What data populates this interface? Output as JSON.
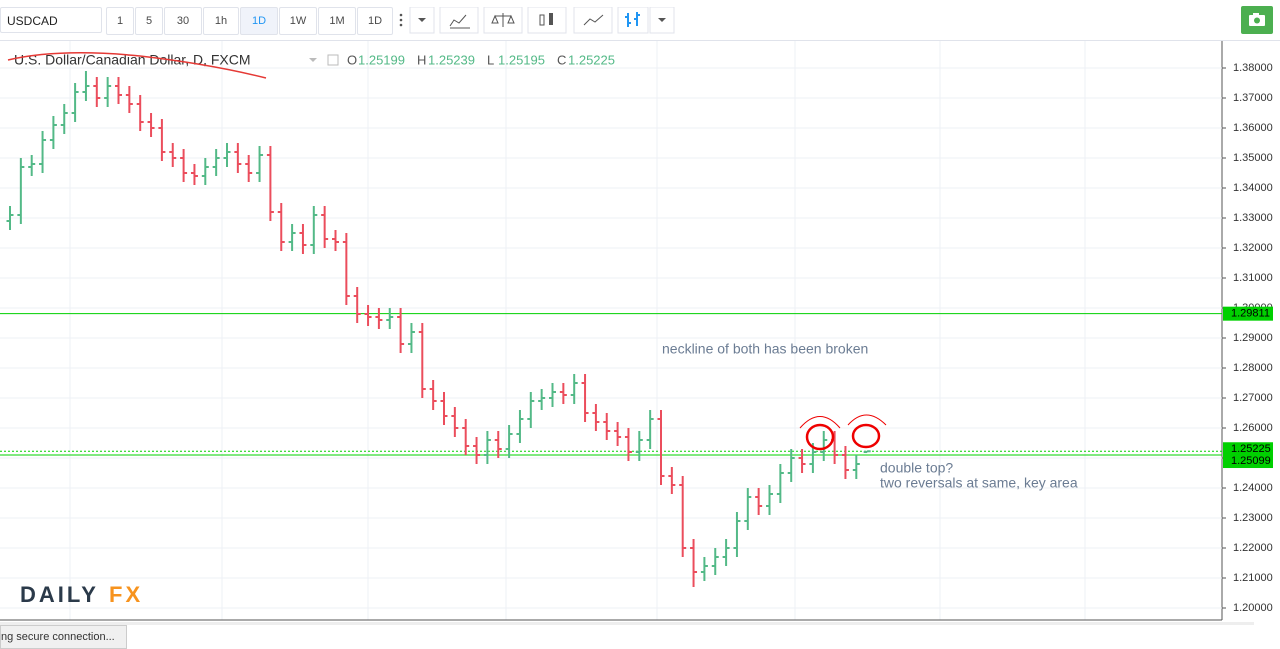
{
  "toolbar": {
    "symbol": "USDCAD",
    "intervals": [
      "1",
      "5",
      "30",
      "1h",
      "1D",
      "1W",
      "1M",
      "1D"
    ]
  },
  "chart_data": {
    "type": "ohlc",
    "title": "U.S. Dollar/Canadian Dollar, D, FXCM",
    "ohlc_letters": [
      "O",
      "H",
      "L",
      "C"
    ],
    "open": [
      1.329,
      1.331,
      1.347,
      1.348,
      1.356,
      1.361,
      1.365,
      1.372,
      1.374,
      1.37,
      1.374,
      1.371,
      1.368,
      1.362,
      1.36,
      1.352,
      1.35,
      1.345,
      1.344,
      1.347,
      1.35,
      1.352,
      1.348,
      1.345,
      1.351,
      1.332,
      1.322,
      1.325,
      1.321,
      1.331,
      1.323,
      1.322,
      1.304,
      1.298,
      1.297,
      1.296,
      1.297,
      1.288,
      1.292,
      1.273,
      1.269,
      1.264,
      1.26,
      1.254,
      1.251,
      1.256,
      1.253,
      1.258,
      1.263,
      1.269,
      1.27,
      1.272,
      1.271,
      1.275,
      1.265,
      1.262,
      1.259,
      1.257,
      1.252,
      1.256,
      1.263,
      1.244,
      1.241,
      1.22,
      1.212,
      1.214,
      1.217,
      1.22,
      1.229,
      1.237,
      1.234,
      1.238,
      1.245,
      1.25,
      1.248,
      1.252,
      1.256,
      1.251,
      1.246,
      1.25199
    ],
    "high": [
      1.334,
      1.35,
      1.351,
      1.359,
      1.364,
      1.368,
      1.375,
      1.379,
      1.377,
      1.377,
      1.377,
      1.374,
      1.371,
      1.365,
      1.363,
      1.355,
      1.353,
      1.348,
      1.35,
      1.353,
      1.355,
      1.355,
      1.351,
      1.354,
      1.354,
      1.335,
      1.328,
      1.328,
      1.334,
      1.334,
      1.326,
      1.325,
      1.307,
      1.301,
      1.3,
      1.3,
      1.3,
      1.295,
      1.295,
      1.276,
      1.272,
      1.267,
      1.263,
      1.257,
      1.259,
      1.259,
      1.261,
      1.266,
      1.272,
      1.273,
      1.275,
      1.275,
      1.278,
      1.278,
      1.268,
      1.265,
      1.262,
      1.26,
      1.259,
      1.266,
      1.266,
      1.247,
      1.244,
      1.223,
      1.217,
      1.22,
      1.223,
      1.232,
      1.24,
      1.24,
      1.241,
      1.248,
      1.253,
      1.253,
      1.255,
      1.259,
      1.259,
      1.254,
      1.251,
      1.25239
    ],
    "low": [
      1.326,
      1.328,
      1.344,
      1.345,
      1.353,
      1.358,
      1.362,
      1.369,
      1.367,
      1.367,
      1.368,
      1.365,
      1.359,
      1.357,
      1.349,
      1.347,
      1.342,
      1.341,
      1.341,
      1.344,
      1.347,
      1.345,
      1.342,
      1.342,
      1.329,
      1.319,
      1.319,
      1.318,
      1.318,
      1.32,
      1.319,
      1.301,
      1.295,
      1.294,
      1.293,
      1.293,
      1.285,
      1.285,
      1.27,
      1.266,
      1.261,
      1.257,
      1.251,
      1.248,
      1.248,
      1.25,
      1.25,
      1.255,
      1.26,
      1.266,
      1.267,
      1.268,
      1.268,
      1.262,
      1.259,
      1.256,
      1.254,
      1.249,
      1.249,
      1.253,
      1.241,
      1.238,
      1.217,
      1.207,
      1.209,
      1.211,
      1.214,
      1.217,
      1.226,
      1.231,
      1.231,
      1.235,
      1.242,
      1.245,
      1.245,
      1.249,
      1.248,
      1.243,
      1.243,
      1.25195
    ],
    "close": [
      1.331,
      1.347,
      1.348,
      1.356,
      1.361,
      1.365,
      1.372,
      1.374,
      1.37,
      1.374,
      1.371,
      1.368,
      1.362,
      1.36,
      1.352,
      1.35,
      1.345,
      1.344,
      1.347,
      1.35,
      1.352,
      1.348,
      1.345,
      1.351,
      1.332,
      1.322,
      1.325,
      1.321,
      1.331,
      1.323,
      1.322,
      1.304,
      1.298,
      1.297,
      1.296,
      1.297,
      1.288,
      1.292,
      1.273,
      1.269,
      1.264,
      1.26,
      1.254,
      1.251,
      1.256,
      1.253,
      1.258,
      1.263,
      1.269,
      1.27,
      1.272,
      1.271,
      1.275,
      1.265,
      1.262,
      1.259,
      1.257,
      1.252,
      1.256,
      1.263,
      1.244,
      1.241,
      1.22,
      1.212,
      1.214,
      1.217,
      1.22,
      1.229,
      1.237,
      1.234,
      1.238,
      1.245,
      1.25,
      1.248,
      1.252,
      1.256,
      1.251,
      1.246,
      1.248,
      1.25225
    ],
    "up_color": "#53b987",
    "down_color": "#eb4d5c",
    "ylim": [
      1.196,
      1.389
    ],
    "yticks": [
      {
        "value": 1.2,
        "label": "1.20000"
      },
      {
        "value": 1.21,
        "label": "1.21000"
      },
      {
        "value": 1.22,
        "label": "1.22000"
      },
      {
        "value": 1.23,
        "label": "1.23000"
      },
      {
        "value": 1.24,
        "label": "1.24000"
      },
      {
        "value": 1.25,
        "label": "1.25000"
      },
      {
        "value": 1.26,
        "label": "1.26000"
      },
      {
        "value": 1.27,
        "label": "1.27000"
      },
      {
        "value": 1.28,
        "label": "1.28000"
      },
      {
        "value": 1.29,
        "label": "1.29000"
      },
      {
        "value": 1.3,
        "label": "1.30000"
      },
      {
        "value": 1.31,
        "label": "1.31000"
      },
      {
        "value": 1.32,
        "label": "1.32000"
      },
      {
        "value": 1.33,
        "label": "1.33000"
      },
      {
        "value": 1.34,
        "label": "1.34000"
      },
      {
        "value": 1.35,
        "label": "1.35000"
      },
      {
        "value": 1.36,
        "label": "1.36000"
      },
      {
        "value": 1.37,
        "label": "1.37000"
      },
      {
        "value": 1.38,
        "label": "1.38000"
      }
    ],
    "grid": true,
    "hlines": [
      1.29811,
      1.25225,
      1.25099
    ],
    "hline_color": "#00d000",
    "annotations": [
      "neckline of both has been broken",
      "double top?",
      "two reversals at same, key area"
    ]
  },
  "logo": [
    "DAILY",
    "FX"
  ],
  "status": "ng secure connection..."
}
